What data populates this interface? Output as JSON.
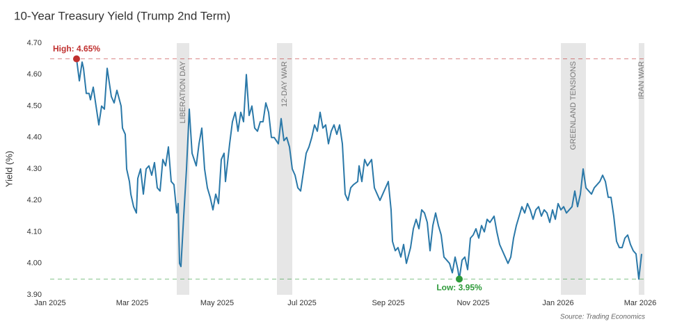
{
  "chart_data": {
    "type": "line",
    "title": "10-Year Treasury Yield (Trump 2nd Term)",
    "ylabel": "Yield (%)",
    "source": "Source: Trading Economics",
    "xlim": [
      "2025-01-01",
      "2026-03-06"
    ],
    "ylim": [
      3.9,
      4.7
    ],
    "yticks": [
      {
        "value": 3.9,
        "label": "3.90"
      },
      {
        "value": 4.0,
        "label": "4.00"
      },
      {
        "value": 4.1,
        "label": "4.10"
      },
      {
        "value": 4.2,
        "label": "4.20"
      },
      {
        "value": 4.3,
        "label": "4.30"
      },
      {
        "value": 4.4,
        "label": "4.40"
      },
      {
        "value": 4.5,
        "label": "4.50"
      },
      {
        "value": 4.6,
        "label": "4.60"
      },
      {
        "value": 4.7,
        "label": "4.70"
      }
    ],
    "xticks": [
      {
        "value": "2025-01-01",
        "label": "Jan 2025"
      },
      {
        "value": "2025-03-01",
        "label": "Mar 2025"
      },
      {
        "value": "2025-05-01",
        "label": "May 2025"
      },
      {
        "value": "2025-07-01",
        "label": "Jul 2025"
      },
      {
        "value": "2025-09-01",
        "label": "Sep 2025"
      },
      {
        "value": "2025-11-01",
        "label": "Nov 2025"
      },
      {
        "value": "2026-01-01",
        "label": "Jan 2026"
      },
      {
        "value": "2026-03-01",
        "label": "Mar 2026"
      }
    ],
    "grid": false,
    "series": [
      {
        "color": "#2a78a8",
        "x": [
          "2025-01-20",
          "2025-01-22",
          "2025-01-24",
          "2025-01-25",
          "2025-01-27",
          "2025-01-29",
          "2025-01-30",
          "2025-02-01",
          "2025-02-03",
          "2025-02-05",
          "2025-02-07",
          "2025-02-09",
          "2025-02-11",
          "2025-02-14",
          "2025-02-16",
          "2025-02-18",
          "2025-02-21",
          "2025-02-22",
          "2025-02-24",
          "2025-02-25",
          "2025-02-27",
          "2025-02-28",
          "2025-03-02",
          "2025-03-04",
          "2025-03-05",
          "2025-03-07",
          "2025-03-09",
          "2025-03-11",
          "2025-03-13",
          "2025-03-15",
          "2025-03-17",
          "2025-03-19",
          "2025-03-21",
          "2025-03-23",
          "2025-03-25",
          "2025-03-27",
          "2025-03-29",
          "2025-03-31",
          "2025-04-02",
          "2025-04-03",
          "2025-04-04",
          "2025-04-05",
          "2025-04-07",
          "2025-04-09",
          "2025-04-11",
          "2025-04-13",
          "2025-04-16",
          "2025-04-18",
          "2025-04-20",
          "2025-04-22",
          "2025-04-24",
          "2025-04-26",
          "2025-04-28",
          "2025-04-30",
          "2025-05-02",
          "2025-05-04",
          "2025-05-06",
          "2025-05-07",
          "2025-05-10",
          "2025-05-12",
          "2025-05-14",
          "2025-05-16",
          "2025-05-18",
          "2025-05-20",
          "2025-05-22",
          "2025-05-24",
          "2025-05-26",
          "2025-05-28",
          "2025-05-30",
          "2025-06-01",
          "2025-06-03",
          "2025-06-05",
          "2025-06-07",
          "2025-06-09",
          "2025-06-11",
          "2025-06-14",
          "2025-06-16",
          "2025-06-18",
          "2025-06-20",
          "2025-06-22",
          "2025-06-24",
          "2025-06-26",
          "2025-06-28",
          "2025-06-30",
          "2025-07-02",
          "2025-07-04",
          "2025-07-06",
          "2025-07-08",
          "2025-07-10",
          "2025-07-12",
          "2025-07-14",
          "2025-07-16",
          "2025-07-18",
          "2025-07-20",
          "2025-07-22",
          "2025-07-24",
          "2025-07-26",
          "2025-07-28",
          "2025-07-30",
          "2025-08-01",
          "2025-08-03",
          "2025-08-05",
          "2025-08-07",
          "2025-08-10",
          "2025-08-11",
          "2025-08-13",
          "2025-08-15",
          "2025-08-17",
          "2025-08-20",
          "2025-08-22",
          "2025-08-24",
          "2025-08-26",
          "2025-08-28",
          "2025-08-30",
          "2025-09-01",
          "2025-09-03",
          "2025-09-04",
          "2025-09-06",
          "2025-09-08",
          "2025-09-10",
          "2025-09-12",
          "2025-09-14",
          "2025-09-17",
          "2025-09-19",
          "2025-09-21",
          "2025-09-23",
          "2025-09-25",
          "2025-09-27",
          "2025-09-29",
          "2025-10-01",
          "2025-10-03",
          "2025-10-05",
          "2025-10-07",
          "2025-10-09",
          "2025-10-11",
          "2025-10-13",
          "2025-10-15",
          "2025-10-17",
          "2025-10-19",
          "2025-10-21",
          "2025-10-22",
          "2025-10-24",
          "2025-10-26",
          "2025-10-28",
          "2025-10-30",
          "2025-11-01",
          "2025-11-03",
          "2025-11-05",
          "2025-11-07",
          "2025-11-09",
          "2025-11-11",
          "2025-11-13",
          "2025-11-16",
          "2025-11-18",
          "2025-11-20",
          "2025-11-22",
          "2025-11-24",
          "2025-11-26",
          "2025-11-28",
          "2025-11-30",
          "2025-12-02",
          "2025-12-04",
          "2025-12-06",
          "2025-12-08",
          "2025-12-10",
          "2025-12-12",
          "2025-12-14",
          "2025-12-16",
          "2025-12-18",
          "2025-12-20",
          "2025-12-22",
          "2025-12-24",
          "2025-12-26",
          "2025-12-28",
          "2025-12-30",
          "2026-01-01",
          "2026-01-03",
          "2026-01-05",
          "2026-01-07",
          "2026-01-09",
          "2026-01-11",
          "2026-01-13",
          "2026-01-15",
          "2026-01-17",
          "2026-01-19",
          "2026-01-21",
          "2026-01-23",
          "2026-01-25",
          "2026-01-27",
          "2026-01-29",
          "2026-01-31",
          "2026-02-02",
          "2026-02-04",
          "2026-02-06",
          "2026-02-08",
          "2026-02-10",
          "2026-02-12",
          "2026-02-14",
          "2026-02-16",
          "2026-02-18",
          "2026-02-20",
          "2026-02-22",
          "2026-02-24",
          "2026-02-26",
          "2026-02-28",
          "2026-03-02"
        ],
        "values": [
          4.65,
          4.58,
          4.64,
          4.62,
          4.54,
          4.54,
          4.52,
          4.56,
          4.5,
          4.44,
          4.5,
          4.49,
          4.62,
          4.53,
          4.51,
          4.55,
          4.5,
          4.43,
          4.41,
          4.3,
          4.26,
          4.22,
          4.18,
          4.16,
          4.27,
          4.3,
          4.22,
          4.3,
          4.31,
          4.28,
          4.32,
          4.24,
          4.23,
          4.33,
          4.31,
          4.37,
          4.26,
          4.25,
          4.16,
          4.19,
          4.0,
          3.99,
          4.15,
          4.3,
          4.49,
          4.35,
          4.31,
          4.38,
          4.43,
          4.3,
          4.24,
          4.21,
          4.17,
          4.22,
          4.19,
          4.33,
          4.35,
          4.26,
          4.38,
          4.45,
          4.48,
          4.42,
          4.48,
          4.45,
          4.6,
          4.47,
          4.5,
          4.43,
          4.42,
          4.45,
          4.45,
          4.51,
          4.48,
          4.4,
          4.4,
          4.38,
          4.46,
          4.39,
          4.4,
          4.37,
          4.3,
          4.28,
          4.24,
          4.23,
          4.29,
          4.35,
          4.37,
          4.4,
          4.44,
          4.42,
          4.48,
          4.43,
          4.44,
          4.38,
          4.42,
          4.44,
          4.41,
          4.44,
          4.38,
          4.22,
          4.2,
          4.24,
          4.25,
          4.26,
          4.31,
          4.26,
          4.33,
          4.31,
          4.33,
          4.24,
          4.22,
          4.2,
          4.22,
          4.24,
          4.26,
          4.17,
          4.07,
          4.04,
          4.05,
          4.02,
          4.06,
          4.0,
          4.05,
          4.11,
          4.14,
          4.11,
          4.17,
          4.16,
          4.13,
          4.04,
          4.12,
          4.16,
          4.12,
          4.09,
          4.02,
          4.01,
          4.0,
          3.97,
          4.02,
          3.98,
          3.95,
          4.01,
          4.02,
          3.98,
          4.08,
          4.09,
          4.11,
          4.08,
          4.12,
          4.1,
          4.14,
          4.13,
          4.15,
          4.1,
          4.06,
          4.04,
          4.02,
          4.0,
          4.02,
          4.08,
          4.12,
          4.15,
          4.18,
          4.16,
          4.19,
          4.17,
          4.14,
          4.17,
          4.18,
          4.15,
          4.17,
          4.16,
          4.13,
          4.17,
          4.14,
          4.19,
          4.17,
          4.18,
          4.16,
          4.17,
          4.18,
          4.23,
          4.18,
          4.22,
          4.3,
          4.24,
          4.23,
          4.22,
          4.24,
          4.25,
          4.26,
          4.28,
          4.26,
          4.21,
          4.21,
          4.15,
          4.07,
          4.05,
          4.05,
          4.08,
          4.09,
          4.06,
          4.04,
          4.03,
          3.95,
          4.03
        ]
      }
    ],
    "events": [
      {
        "label": "LIBERATION DAY",
        "start": "2025-04-02",
        "end": "2025-04-11"
      },
      {
        "label": "12-DAY WAR",
        "start": "2025-06-13",
        "end": "2025-06-24"
      },
      {
        "label": "GREENLAND TENSIONS",
        "start": "2026-01-03",
        "end": "2026-01-21"
      },
      {
        "label": "IRAN WAR",
        "start": "2026-02-28",
        "end": "2026-03-04"
      }
    ],
    "markers": [
      {
        "label": "High: 4.65%",
        "x": "2025-01-20",
        "value": 4.65,
        "color": "#c0302f"
      },
      {
        "label": "Low: 3.95%",
        "x": "2025-10-22",
        "value": 3.95,
        "color": "#2e9a3a"
      }
    ]
  }
}
